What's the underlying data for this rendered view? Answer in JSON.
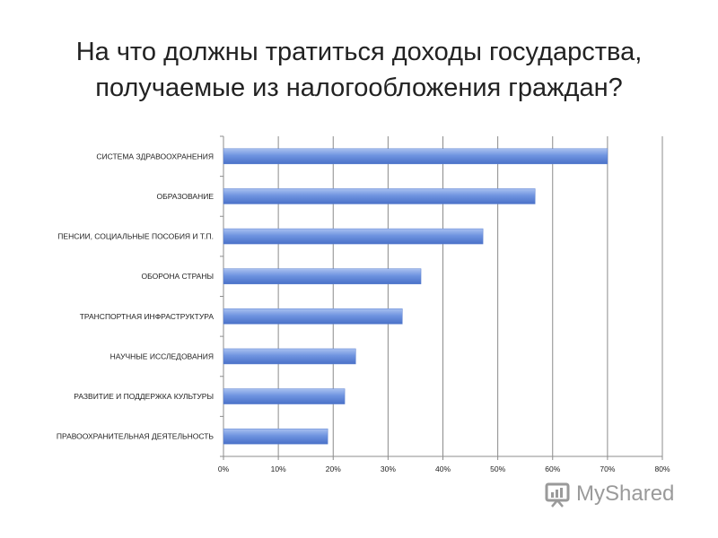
{
  "header": {
    "title_line1": "На что должны тратиться доходы государства,",
    "title_line2": "получаемые из налогообложения граждан?"
  },
  "watermark": {
    "text": "MyShared",
    "icon": "myshared-logo-icon"
  },
  "colors": {
    "bar_top": "#a9c1f0",
    "bar_mid": "#6f94e0",
    "bar_bottom": "#4a71c8",
    "grid": "#8c8c8c",
    "text": "#222222"
  },
  "chart_data": {
    "type": "bar",
    "orientation": "horizontal",
    "categories": [
      "СИСТЕМА ЗДРАВООХРАНЕНИЯ",
      "ОБРАЗОВАНИЕ",
      "ПЕНСИИ, СОЦИАЛЬНЫЕ ПОСОБИЯ И Т.П.",
      "ОБОРОНА СТРАНЫ",
      "ТРАНСПОРТНАЯ ИНФРАСТРУКТУРА",
      "НАУЧНЫЕ ИССЛЕДОВАНИЯ",
      "РАЗВИТИЕ И ПОДДЕРЖКА КУЛЬТУРЫ",
      "ПРАВООХРАНИТЕЛЬНАЯ ДЕЯТЕЛЬНОСТЬ"
    ],
    "values": [
      70,
      56.8,
      47.3,
      36,
      32.6,
      24.1,
      22.1,
      19
    ],
    "xlim": [
      0,
      80
    ],
    "xticks": [
      0,
      10,
      20,
      30,
      40,
      50,
      60,
      70,
      80
    ],
    "xtick_labels": [
      "0%",
      "10%",
      "20%",
      "30%",
      "40%",
      "50%",
      "60%",
      "70%",
      "80%"
    ],
    "grid": true,
    "legend": "none"
  }
}
